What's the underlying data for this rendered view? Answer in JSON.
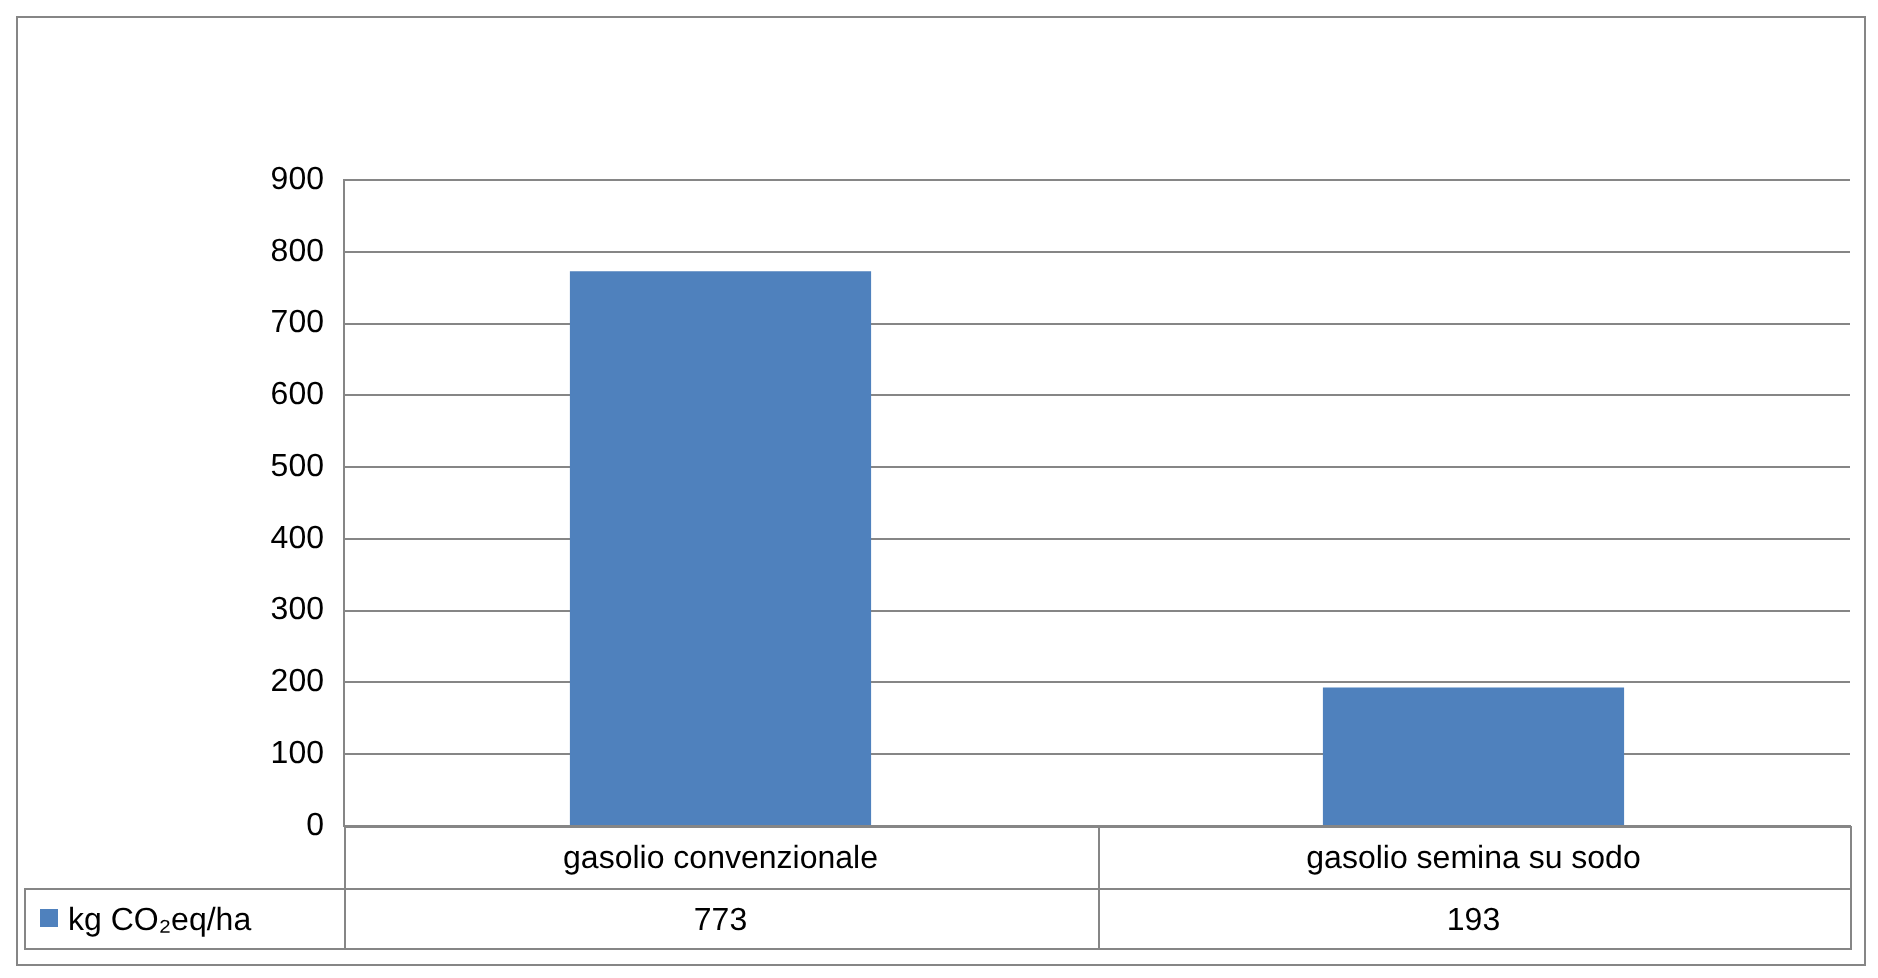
{
  "chart_data": {
    "type": "bar",
    "categories": [
      "gasolio convenzionale",
      "gasolio semina su sodo"
    ],
    "series": [
      {
        "name": "kg CO₂eq/ha",
        "color": "#4f81bd",
        "values": [
          773,
          193
        ]
      }
    ],
    "ylim": [
      0,
      900
    ],
    "yticks": [
      0,
      100,
      200,
      300,
      400,
      500,
      600,
      700,
      800,
      900
    ],
    "grid": "y",
    "legend": "bottom",
    "data_labels": true
  }
}
